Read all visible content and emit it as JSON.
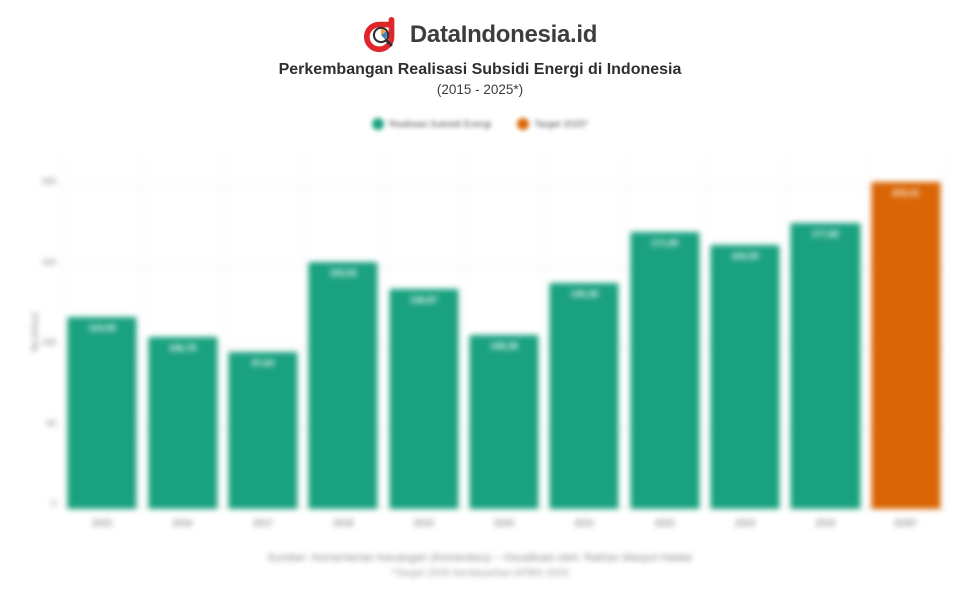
{
  "header": {
    "brand": "DataIndonesia.id",
    "title": "Perkembangan Realisasi Subsidi Energi di Indonesia",
    "subtitle": "(2015 - 2025*)"
  },
  "colors": {
    "brand_red": "#e0252b",
    "realisasi_green": "#1aa17f",
    "target_orange": "#d96504"
  },
  "legend": [
    {
      "label": "Realisasi Subsidi Energi",
      "color": "#1aa17f"
    },
    {
      "label": "Target 2025*",
      "color": "#d96504"
    }
  ],
  "chart_data": {
    "type": "bar",
    "title": "Perkembangan Realisasi Subsidi Energi di Indonesia (2015 - 2025*)",
    "categories": [
      "2015",
      "2016",
      "2017",
      "2018",
      "2019",
      "2020",
      "2021",
      "2022",
      "2023",
      "2024",
      "2025*"
    ],
    "values": [
      119.09,
      106.78,
      97.64,
      153.52,
      136.87,
      108.38,
      140.39,
      171.9,
      164.3,
      177.82,
      203.41
    ],
    "bar_labels": [
      "119,09",
      "106,78",
      "97,64",
      "153,52",
      "136,87",
      "108,38",
      "140,39",
      "171,90",
      "164,30",
      "177,82",
      "203,41"
    ],
    "bar_colors": [
      "#1aa17f",
      "#1aa17f",
      "#1aa17f",
      "#1aa17f",
      "#1aa17f",
      "#1aa17f",
      "#1aa17f",
      "#1aa17f",
      "#1aa17f",
      "#1aa17f",
      "#d96504"
    ],
    "series_names": [
      "Realisasi Subsidi Energi",
      "Target 2025*"
    ],
    "xlabel": "",
    "ylabel": "Rp (triliun)",
    "yticks": [
      0,
      50,
      100,
      150,
      200
    ],
    "ylim": [
      0,
      220
    ],
    "grid": true,
    "legend_position": "top-center"
  },
  "footer": {
    "line1": "Sumber: Kementerian Keuangan (Kemenkeu) – Visualisasi oleh: Raihan Masyul Haidar",
    "line2": "*Target 2025 berdasarkan APBN 2025"
  }
}
